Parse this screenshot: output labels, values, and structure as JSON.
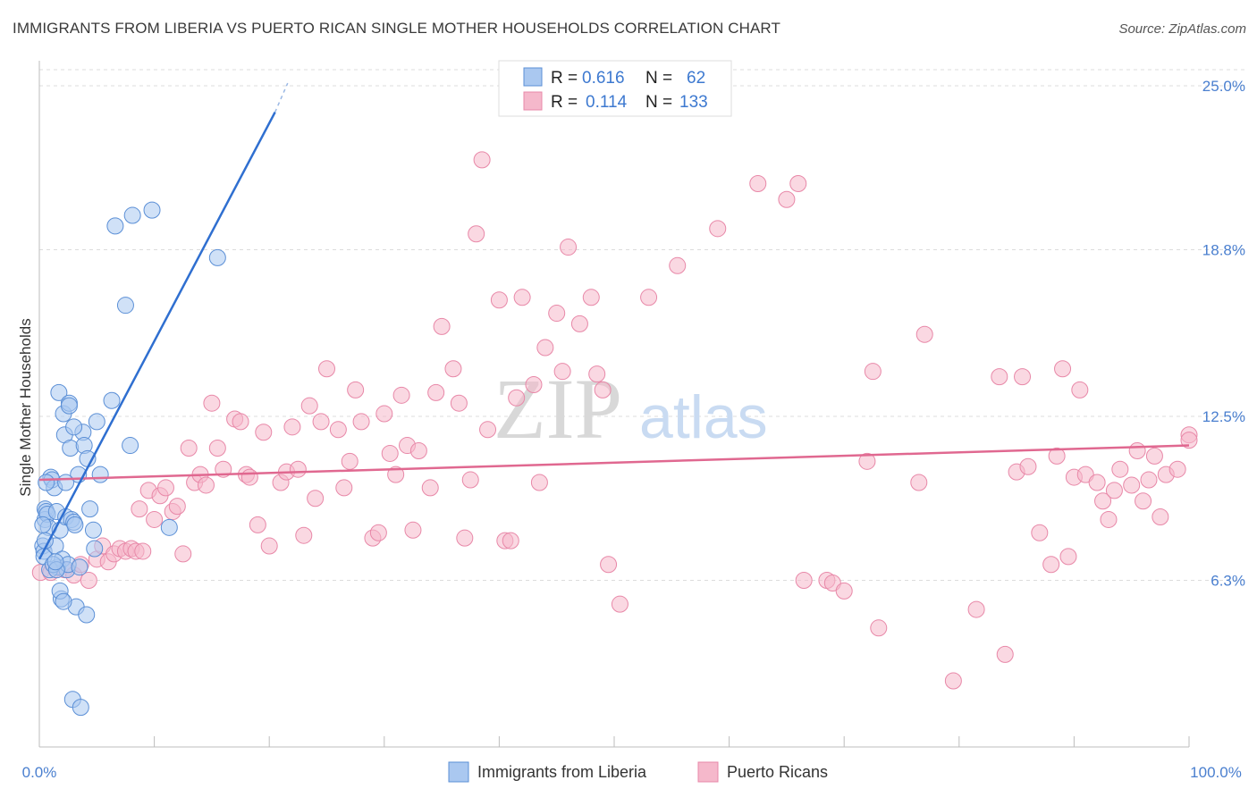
{
  "header": {
    "title": "IMMIGRANTS FROM LIBERIA VS PUERTO RICAN SINGLE MOTHER HOUSEHOLDS CORRELATION CHART",
    "source": "Source: ZipAtlas.com"
  },
  "legend_box": {
    "rows": [
      {
        "r_label": "R =",
        "r_value": "0.616",
        "n_label": "N =",
        "n_value": "62"
      },
      {
        "r_label": "R =",
        "r_value": "0.114",
        "n_label": "N =",
        "n_value": "133"
      }
    ]
  },
  "watermark": {
    "zip": "ZIP",
    "atlas": "atlas"
  },
  "colors": {
    "blue_fill": "#aac8f0",
    "blue_stroke": "#5b8fd6",
    "blue_line": "#2f6fd0",
    "pink_fill": "#f5b8cb",
    "pink_stroke": "#e888a8",
    "pink_line": "#e06890",
    "tick_text": "#4a7fcf",
    "grid": "#dcdcdc"
  },
  "chart_data": {
    "type": "scatter",
    "title": "IMMIGRANTS FROM LIBERIA VS PUERTO RICAN SINGLE MOTHER HOUSEHOLDS CORRELATION CHART",
    "xlabel": "",
    "ylabel": "Single Mother Households",
    "xlim": [
      0,
      100
    ],
    "ylim": [
      0,
      25.6
    ],
    "x_tick_labels": [
      "0.0%",
      "100.0%"
    ],
    "y_ticks": [
      6.3,
      12.5,
      18.8,
      25.0
    ],
    "y_tick_labels": [
      "6.3%",
      "12.5%",
      "18.8%",
      "25.0%"
    ],
    "grid": true,
    "legend_position": "top-center",
    "series": [
      {
        "name": "Immigrants from Liberia",
        "color": "#aac8f0",
        "r": 0.616,
        "n": 62,
        "trend": {
          "x": [
            0.0,
            20.5
          ],
          "y": [
            7.1,
            24.0
          ],
          "dash_to": [
            21.6,
            25.1
          ]
        },
        "points": [
          [
            0.3,
            7.6
          ],
          [
            0.4,
            7.4
          ],
          [
            0.4,
            7.2
          ],
          [
            0.5,
            9.0
          ],
          [
            0.5,
            8.6
          ],
          [
            0.6,
            8.9
          ],
          [
            0.7,
            8.8
          ],
          [
            0.8,
            8.3
          ],
          [
            1.0,
            10.2
          ],
          [
            1.1,
            10.1
          ],
          [
            1.3,
            9.8
          ],
          [
            1.4,
            7.6
          ],
          [
            1.5,
            8.9
          ],
          [
            1.6,
            6.8
          ],
          [
            1.7,
            13.4
          ],
          [
            1.8,
            8.2
          ],
          [
            1.9,
            5.6
          ],
          [
            2.0,
            7.1
          ],
          [
            2.1,
            12.6
          ],
          [
            2.2,
            11.8
          ],
          [
            2.3,
            8.7
          ],
          [
            2.4,
            6.7
          ],
          [
            2.5,
            6.9
          ],
          [
            2.6,
            13.0
          ],
          [
            2.6,
            12.9
          ],
          [
            2.7,
            11.3
          ],
          [
            2.8,
            8.6
          ],
          [
            3.0,
            8.5
          ],
          [
            3.1,
            8.4
          ],
          [
            3.2,
            5.3
          ],
          [
            3.4,
            10.3
          ],
          [
            3.5,
            6.8
          ],
          [
            3.8,
            11.9
          ],
          [
            3.9,
            11.4
          ],
          [
            4.2,
            10.9
          ],
          [
            4.4,
            9.0
          ],
          [
            4.7,
            8.2
          ],
          [
            4.8,
            7.5
          ],
          [
            5.0,
            12.3
          ],
          [
            5.3,
            10.3
          ],
          [
            6.3,
            13.1
          ],
          [
            6.6,
            19.7
          ],
          [
            7.5,
            16.7
          ],
          [
            7.9,
            11.4
          ],
          [
            8.1,
            20.1
          ],
          [
            9.8,
            20.3
          ],
          [
            11.3,
            8.3
          ],
          [
            15.5,
            18.5
          ],
          [
            0.5,
            7.8
          ],
          [
            0.9,
            6.7
          ],
          [
            1.2,
            6.9
          ],
          [
            1.5,
            6.7
          ],
          [
            1.8,
            5.9
          ],
          [
            2.1,
            5.5
          ],
          [
            2.9,
            1.8
          ],
          [
            3.6,
            1.5
          ],
          [
            4.1,
            5.0
          ],
          [
            0.3,
            8.4
          ],
          [
            0.6,
            10.0
          ],
          [
            1.4,
            7.0
          ],
          [
            2.3,
            10.0
          ],
          [
            3.0,
            12.1
          ]
        ]
      },
      {
        "name": "Puerto Ricans",
        "color": "#f5b8cb",
        "r": 0.114,
        "n": 133,
        "trend": {
          "x": [
            0,
            100
          ],
          "y": [
            10.1,
            11.4
          ]
        },
        "points": [
          [
            0.1,
            6.6
          ],
          [
            1.0,
            6.6
          ],
          [
            1.5,
            6.7
          ],
          [
            2.2,
            6.7
          ],
          [
            3.0,
            6.5
          ],
          [
            3.6,
            6.9
          ],
          [
            4.3,
            6.3
          ],
          [
            5.0,
            7.1
          ],
          [
            5.5,
            7.6
          ],
          [
            6.0,
            7.0
          ],
          [
            6.5,
            7.3
          ],
          [
            7.0,
            7.5
          ],
          [
            7.5,
            7.4
          ],
          [
            8.0,
            7.5
          ],
          [
            8.4,
            7.4
          ],
          [
            8.7,
            9.0
          ],
          [
            9.0,
            7.4
          ],
          [
            9.5,
            9.7
          ],
          [
            10.0,
            8.6
          ],
          [
            10.5,
            9.5
          ],
          [
            11.0,
            9.8
          ],
          [
            11.6,
            8.9
          ],
          [
            12.0,
            9.1
          ],
          [
            12.5,
            7.3
          ],
          [
            13.0,
            11.3
          ],
          [
            13.5,
            10.0
          ],
          [
            14.0,
            10.3
          ],
          [
            14.5,
            9.9
          ],
          [
            15.0,
            13.0
          ],
          [
            15.5,
            11.3
          ],
          [
            16.0,
            10.5
          ],
          [
            17.0,
            12.4
          ],
          [
            17.5,
            12.3
          ],
          [
            18.0,
            10.3
          ],
          [
            18.3,
            10.2
          ],
          [
            19.0,
            8.4
          ],
          [
            19.5,
            11.9
          ],
          [
            20.0,
            7.6
          ],
          [
            21.0,
            10.0
          ],
          [
            21.5,
            10.4
          ],
          [
            22.0,
            12.1
          ],
          [
            22.5,
            10.5
          ],
          [
            23.0,
            8.0
          ],
          [
            23.5,
            12.9
          ],
          [
            24.0,
            9.4
          ],
          [
            24.5,
            12.3
          ],
          [
            25.0,
            14.3
          ],
          [
            26.0,
            12.0
          ],
          [
            26.5,
            9.8
          ],
          [
            27.0,
            10.8
          ],
          [
            27.5,
            13.5
          ],
          [
            28.0,
            12.3
          ],
          [
            29.0,
            7.9
          ],
          [
            29.5,
            8.1
          ],
          [
            30.0,
            12.6
          ],
          [
            30.5,
            11.1
          ],
          [
            31.0,
            10.3
          ],
          [
            31.5,
            13.3
          ],
          [
            32.0,
            11.4
          ],
          [
            32.5,
            8.2
          ],
          [
            33.0,
            11.2
          ],
          [
            34.0,
            9.8
          ],
          [
            34.5,
            13.4
          ],
          [
            35.0,
            15.9
          ],
          [
            36.0,
            14.3
          ],
          [
            36.5,
            13.0
          ],
          [
            37.0,
            7.9
          ],
          [
            37.5,
            10.1
          ],
          [
            38.0,
            19.4
          ],
          [
            38.5,
            22.2
          ],
          [
            39.0,
            12.0
          ],
          [
            40.0,
            16.9
          ],
          [
            40.5,
            7.8
          ],
          [
            41.0,
            7.8
          ],
          [
            41.5,
            13.2
          ],
          [
            42.0,
            17.0
          ],
          [
            43.0,
            13.7
          ],
          [
            43.5,
            10.0
          ],
          [
            44.0,
            15.1
          ],
          [
            45.0,
            16.4
          ],
          [
            45.5,
            14.2
          ],
          [
            46.0,
            18.9
          ],
          [
            47.0,
            16.0
          ],
          [
            48.0,
            17.0
          ],
          [
            48.5,
            14.1
          ],
          [
            49.0,
            13.5
          ],
          [
            49.5,
            6.9
          ],
          [
            50.5,
            5.4
          ],
          [
            53.0,
            17.0
          ],
          [
            55.5,
            18.2
          ],
          [
            59.0,
            19.6
          ],
          [
            62.5,
            21.3
          ],
          [
            65.0,
            20.7
          ],
          [
            66.0,
            21.3
          ],
          [
            66.5,
            6.3
          ],
          [
            68.5,
            6.3
          ],
          [
            69.0,
            6.2
          ],
          [
            70.0,
            5.9
          ],
          [
            72.0,
            10.8
          ],
          [
            72.5,
            14.2
          ],
          [
            73.0,
            4.5
          ],
          [
            76.5,
            10.0
          ],
          [
            77.0,
            15.6
          ],
          [
            79.5,
            2.5
          ],
          [
            81.5,
            5.2
          ],
          [
            83.5,
            14.0
          ],
          [
            84.0,
            3.5
          ],
          [
            85.0,
            10.4
          ],
          [
            85.5,
            14.0
          ],
          [
            86.0,
            10.6
          ],
          [
            87.0,
            8.1
          ],
          [
            88.0,
            6.9
          ],
          [
            88.5,
            11.0
          ],
          [
            89.0,
            14.3
          ],
          [
            89.5,
            7.2
          ],
          [
            90.0,
            10.2
          ],
          [
            90.5,
            13.5
          ],
          [
            91.0,
            10.3
          ],
          [
            92.0,
            10.0
          ],
          [
            92.5,
            9.3
          ],
          [
            93.0,
            8.6
          ],
          [
            93.5,
            9.7
          ],
          [
            94.0,
            10.5
          ],
          [
            95.0,
            9.9
          ],
          [
            95.5,
            11.2
          ],
          [
            96.0,
            9.3
          ],
          [
            96.5,
            10.1
          ],
          [
            97.0,
            11.0
          ],
          [
            97.5,
            8.7
          ],
          [
            98.0,
            10.3
          ],
          [
            99.0,
            10.5
          ],
          [
            100.0,
            11.8
          ],
          [
            100.0,
            11.6
          ]
        ]
      }
    ]
  },
  "bottom_legend": {
    "items": [
      {
        "label": "Immigrants from Liberia"
      },
      {
        "label": "Puerto Ricans"
      }
    ]
  }
}
